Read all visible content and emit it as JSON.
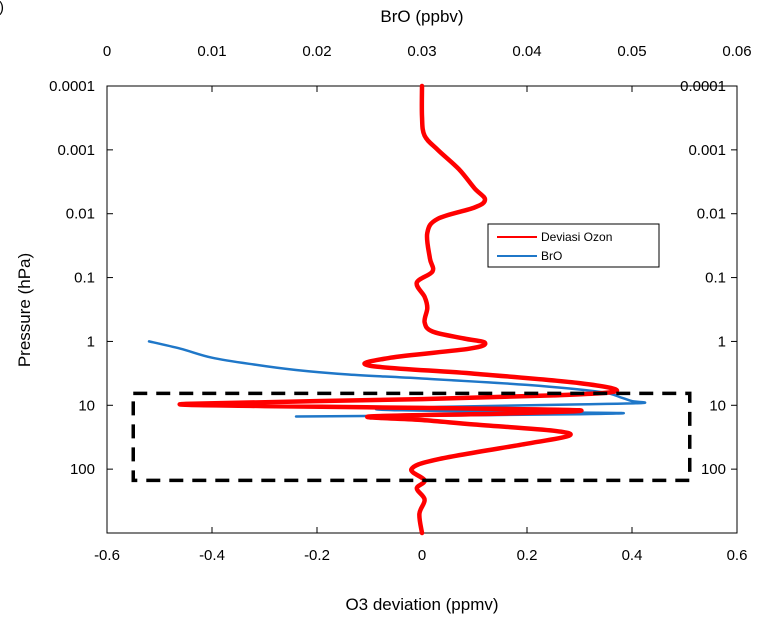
{
  "figure_label": ")",
  "chart_data": {
    "type": "line",
    "title": "",
    "bottom_axis": {
      "label": "O3 deviation (ppmv)",
      "range": [
        -0.6,
        0.6
      ],
      "ticks": [
        -0.6,
        -0.4,
        -0.2,
        0,
        0.2,
        0.4,
        0.6
      ],
      "tick_labels": [
        "-0.6",
        "-0.4",
        "-0.2",
        "0",
        "0.2",
        "0.4",
        "0.6"
      ]
    },
    "top_axis": {
      "label": "BrO (ppbv)",
      "range": [
        0,
        0.06
      ],
      "ticks": [
        0,
        0.01,
        0.02,
        0.03,
        0.04,
        0.05,
        0.06
      ],
      "tick_labels": [
        "0",
        "0.01",
        "0.02",
        "0.03",
        "0.04",
        "0.05",
        "0.06"
      ]
    },
    "y_axis": {
      "label": "Pressure (hPa)",
      "scale": "log",
      "inverted": true,
      "range": [
        0.0001,
        1000
      ],
      "ticks": [
        0.0001,
        0.001,
        0.01,
        0.1,
        1,
        10,
        100
      ],
      "tick_labels": [
        "0.0001",
        "0.001",
        "0.01",
        "0.1",
        "1",
        "10",
        "100"
      ]
    },
    "legend": {
      "placement": "right",
      "entries": [
        {
          "name": "Deviasi Ozon",
          "color": "#ff0000"
        },
        {
          "name": "BrO",
          "color": "#1f77c8"
        }
      ]
    },
    "series": [
      {
        "name": "Deviasi Ozon",
        "axis": "bottom",
        "color": "#ff0000",
        "points": [
          [
            0.0,
            0.0001
          ],
          [
            0.0,
            0.0003
          ],
          [
            0.005,
            0.0006
          ],
          [
            0.03,
            0.001
          ],
          [
            0.07,
            0.002
          ],
          [
            0.1,
            0.004
          ],
          [
            0.12,
            0.006
          ],
          [
            0.1,
            0.008
          ],
          [
            0.03,
            0.012
          ],
          [
            0.01,
            0.02
          ],
          [
            0.015,
            0.05
          ],
          [
            0.02,
            0.08
          ],
          [
            -0.01,
            0.12
          ],
          [
            0.005,
            0.2
          ],
          [
            0.01,
            0.3
          ],
          [
            0.005,
            0.5
          ],
          [
            0.02,
            0.7
          ],
          [
            0.08,
            0.9
          ],
          [
            0.12,
            1.05
          ],
          [
            0.09,
            1.3
          ],
          [
            -0.06,
            1.8
          ],
          [
            -0.1,
            2.4
          ],
          [
            0.1,
            3.2
          ],
          [
            0.3,
            4.5
          ],
          [
            0.37,
            6.0
          ],
          [
            0.25,
            7.0
          ],
          [
            0.0,
            8.0
          ],
          [
            -0.45,
            9.5
          ],
          [
            -0.3,
            10.3
          ],
          [
            0.0,
            11.0
          ],
          [
            0.3,
            12.0
          ],
          [
            0.15,
            13.5
          ],
          [
            -0.1,
            15.0
          ],
          [
            0.0,
            17.0
          ],
          [
            0.1,
            20.0
          ],
          [
            0.25,
            25.0
          ],
          [
            0.28,
            30.0
          ],
          [
            0.2,
            40.0
          ],
          [
            0.03,
            70.0
          ],
          [
            -0.02,
            100.0
          ],
          [
            0.005,
            150
          ],
          [
            -0.01,
            200
          ],
          [
            0.005,
            300
          ],
          [
            -0.005,
            500
          ],
          [
            0.0,
            1000
          ]
        ]
      },
      {
        "name": "BrO",
        "axis": "top",
        "color": "#1f77c8",
        "points": [
          [
            0.004,
            1.0
          ],
          [
            0.007,
            1.3
          ],
          [
            0.01,
            1.8
          ],
          [
            0.014,
            2.3
          ],
          [
            0.018,
            2.8
          ],
          [
            0.023,
            3.3
          ],
          [
            0.03,
            3.8
          ],
          [
            0.04,
            4.8
          ],
          [
            0.047,
            6.2
          ],
          [
            0.049,
            7.6
          ],
          [
            0.05,
            8.6
          ],
          [
            0.051,
            9.2
          ],
          [
            0.045,
            9.7
          ],
          [
            0.033,
            10.5
          ],
          [
            0.026,
            11.3
          ],
          [
            0.028,
            12.0
          ],
          [
            0.04,
            12.8
          ],
          [
            0.049,
            13.2
          ],
          [
            0.045,
            13.8
          ],
          [
            0.03,
            14.5
          ],
          [
            0.018,
            15.0
          ]
        ]
      }
    ],
    "highlight_box": {
      "x_range": [
        -0.55,
        0.51
      ],
      "y_range": [
        6.5,
        150
      ]
    }
  }
}
